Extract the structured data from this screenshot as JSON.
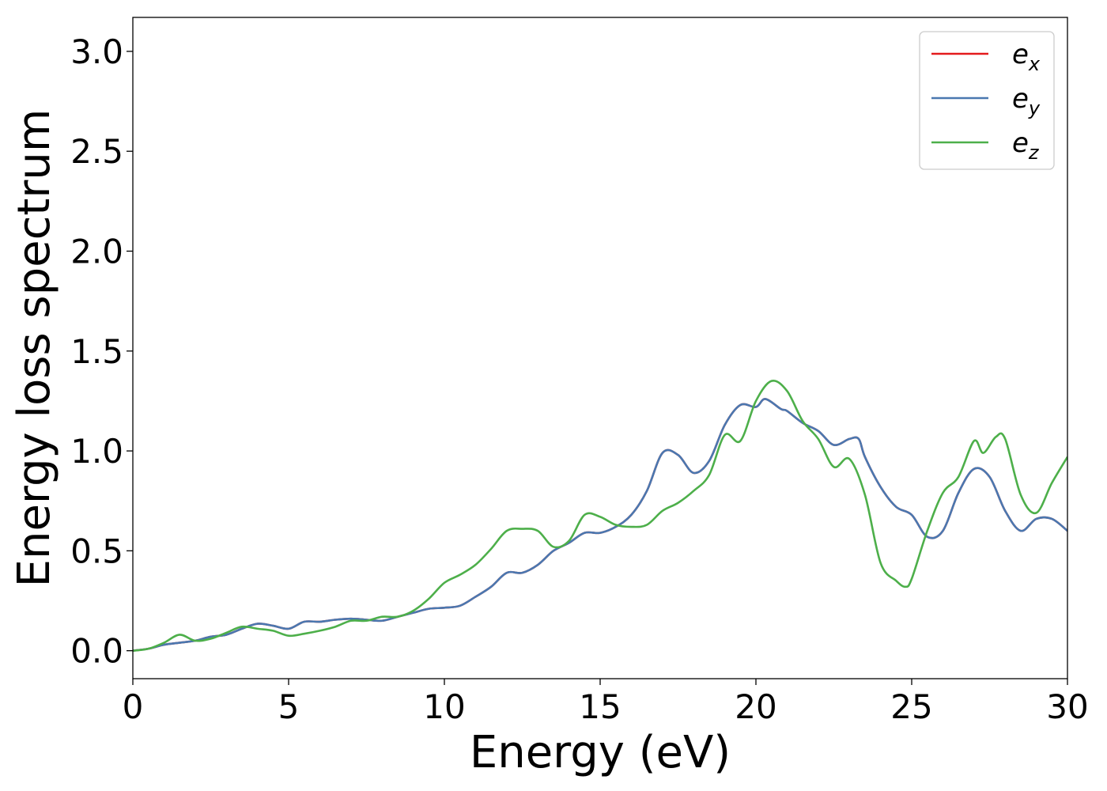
{
  "chart_data": {
    "type": "line",
    "title": "",
    "xlabel": "Energy (eV)",
    "ylabel": "Energy loss spectrum",
    "xlim": [
      0,
      30
    ],
    "ylim": [
      -0.14,
      3.17
    ],
    "xticks": [
      0,
      5,
      10,
      15,
      20,
      25,
      30
    ],
    "xtick_labels": [
      "0",
      "5",
      "10",
      "15",
      "20",
      "25",
      "30"
    ],
    "yticks": [
      0.0,
      0.5,
      1.0,
      1.5,
      2.0,
      2.5,
      3.0
    ],
    "ytick_labels": [
      "0.0",
      "0.5",
      "1.0",
      "1.5",
      "2.0",
      "2.5",
      "3.0"
    ],
    "grid": false,
    "legend_position": "top-right",
    "series": [
      {
        "name": "e_x",
        "legend_base": "e",
        "legend_sub": "x",
        "color": "#e41a1c",
        "points": [
          [
            0,
            0
          ],
          [
            0.5,
            0.01
          ],
          [
            1,
            0.03
          ],
          [
            1.5,
            0.04
          ],
          [
            2,
            0.05
          ],
          [
            2.5,
            0.07
          ],
          [
            3,
            0.08
          ],
          [
            3.5,
            0.11
          ],
          [
            4,
            0.135
          ],
          [
            4.5,
            0.125
          ],
          [
            5,
            0.11
          ],
          [
            5.5,
            0.145
          ],
          [
            6,
            0.145
          ],
          [
            6.5,
            0.155
          ],
          [
            7,
            0.16
          ],
          [
            7.5,
            0.155
          ],
          [
            8,
            0.15
          ],
          [
            8.5,
            0.17
          ],
          [
            9,
            0.19
          ],
          [
            9.5,
            0.21
          ],
          [
            10,
            0.215
          ],
          [
            10.5,
            0.225
          ],
          [
            11,
            0.27
          ],
          [
            11.5,
            0.32
          ],
          [
            12,
            0.39
          ],
          [
            12.5,
            0.39
          ],
          [
            13,
            0.43
          ],
          [
            13.5,
            0.5
          ],
          [
            14,
            0.54
          ],
          [
            14.5,
            0.59
          ],
          [
            15,
            0.59
          ],
          [
            15.5,
            0.62
          ],
          [
            16,
            0.68
          ],
          [
            16.5,
            0.8
          ],
          [
            17,
            0.99
          ],
          [
            17.5,
            0.98
          ],
          [
            18,
            0.89
          ],
          [
            18.5,
            0.95
          ],
          [
            19,
            1.13
          ],
          [
            19.5,
            1.23
          ],
          [
            20,
            1.22
          ],
          [
            20.3,
            1.26
          ],
          [
            20.8,
            1.21
          ],
          [
            21,
            1.2
          ],
          [
            21.5,
            1.14
          ],
          [
            22,
            1.1
          ],
          [
            22.5,
            1.03
          ],
          [
            23,
            1.06
          ],
          [
            23.3,
            1.06
          ],
          [
            23.5,
            0.97
          ],
          [
            24,
            0.82
          ],
          [
            24.5,
            0.72
          ],
          [
            25,
            0.68
          ],
          [
            25.5,
            0.57
          ],
          [
            26,
            0.6
          ],
          [
            26.5,
            0.79
          ],
          [
            27,
            0.91
          ],
          [
            27.5,
            0.87
          ],
          [
            28,
            0.7
          ],
          [
            28.5,
            0.6
          ],
          [
            29,
            0.66
          ],
          [
            29.5,
            0.66
          ],
          [
            30,
            0.6
          ]
        ]
      },
      {
        "name": "e_y",
        "legend_base": "e",
        "legend_sub": "y",
        "color": "#4a78b0",
        "points": [
          [
            0,
            0
          ],
          [
            0.5,
            0.01
          ],
          [
            1,
            0.03
          ],
          [
            1.5,
            0.04
          ],
          [
            2,
            0.05
          ],
          [
            2.5,
            0.07
          ],
          [
            3,
            0.08
          ],
          [
            3.5,
            0.11
          ],
          [
            4,
            0.135
          ],
          [
            4.5,
            0.125
          ],
          [
            5,
            0.11
          ],
          [
            5.5,
            0.145
          ],
          [
            6,
            0.145
          ],
          [
            6.5,
            0.155
          ],
          [
            7,
            0.16
          ],
          [
            7.5,
            0.155
          ],
          [
            8,
            0.15
          ],
          [
            8.5,
            0.17
          ],
          [
            9,
            0.19
          ],
          [
            9.5,
            0.21
          ],
          [
            10,
            0.215
          ],
          [
            10.5,
            0.225
          ],
          [
            11,
            0.27
          ],
          [
            11.5,
            0.32
          ],
          [
            12,
            0.39
          ],
          [
            12.5,
            0.39
          ],
          [
            13,
            0.43
          ],
          [
            13.5,
            0.5
          ],
          [
            14,
            0.54
          ],
          [
            14.5,
            0.59
          ],
          [
            15,
            0.59
          ],
          [
            15.5,
            0.62
          ],
          [
            16,
            0.68
          ],
          [
            16.5,
            0.8
          ],
          [
            17,
            0.99
          ],
          [
            17.5,
            0.98
          ],
          [
            18,
            0.89
          ],
          [
            18.5,
            0.95
          ],
          [
            19,
            1.13
          ],
          [
            19.5,
            1.23
          ],
          [
            20,
            1.22
          ],
          [
            20.3,
            1.26
          ],
          [
            20.8,
            1.21
          ],
          [
            21,
            1.2
          ],
          [
            21.5,
            1.14
          ],
          [
            22,
            1.1
          ],
          [
            22.5,
            1.03
          ],
          [
            23,
            1.06
          ],
          [
            23.3,
            1.06
          ],
          [
            23.5,
            0.97
          ],
          [
            24,
            0.82
          ],
          [
            24.5,
            0.72
          ],
          [
            25,
            0.68
          ],
          [
            25.5,
            0.57
          ],
          [
            26,
            0.6
          ],
          [
            26.5,
            0.79
          ],
          [
            27,
            0.91
          ],
          [
            27.5,
            0.87
          ],
          [
            28,
            0.7
          ],
          [
            28.5,
            0.6
          ],
          [
            29,
            0.66
          ],
          [
            29.5,
            0.66
          ],
          [
            30,
            0.6
          ]
        ]
      },
      {
        "name": "e_z",
        "legend_base": "e",
        "legend_sub": "z",
        "color": "#4daf4a",
        "points": [
          [
            0,
            0
          ],
          [
            0.5,
            0.01
          ],
          [
            1,
            0.04
          ],
          [
            1.5,
            0.08
          ],
          [
            2,
            0.05
          ],
          [
            2.5,
            0.06
          ],
          [
            3,
            0.09
          ],
          [
            3.5,
            0.12
          ],
          [
            4,
            0.11
          ],
          [
            4.5,
            0.1
          ],
          [
            5,
            0.075
          ],
          [
            5.5,
            0.085
          ],
          [
            6,
            0.1
          ],
          [
            6.5,
            0.12
          ],
          [
            7,
            0.15
          ],
          [
            7.5,
            0.15
          ],
          [
            8,
            0.17
          ],
          [
            8.5,
            0.17
          ],
          [
            9,
            0.2
          ],
          [
            9.5,
            0.26
          ],
          [
            10,
            0.34
          ],
          [
            10.5,
            0.38
          ],
          [
            11,
            0.43
          ],
          [
            11.5,
            0.51
          ],
          [
            12,
            0.6
          ],
          [
            12.5,
            0.61
          ],
          [
            13,
            0.6
          ],
          [
            13.5,
            0.52
          ],
          [
            14,
            0.55
          ],
          [
            14.5,
            0.68
          ],
          [
            15,
            0.67
          ],
          [
            15.5,
            0.63
          ],
          [
            16,
            0.62
          ],
          [
            16.5,
            0.63
          ],
          [
            17,
            0.7
          ],
          [
            17.5,
            0.74
          ],
          [
            18,
            0.8
          ],
          [
            18.5,
            0.88
          ],
          [
            19,
            1.08
          ],
          [
            19.5,
            1.05
          ],
          [
            20,
            1.25
          ],
          [
            20.5,
            1.35
          ],
          [
            21,
            1.3
          ],
          [
            21.5,
            1.15
          ],
          [
            22,
            1.06
          ],
          [
            22.5,
            0.92
          ],
          [
            23,
            0.96
          ],
          [
            23.5,
            0.78
          ],
          [
            24,
            0.44
          ],
          [
            24.5,
            0.35
          ],
          [
            24.8,
            0.32
          ],
          [
            25,
            0.36
          ],
          [
            25.5,
            0.6
          ],
          [
            26,
            0.79
          ],
          [
            26.5,
            0.87
          ],
          [
            27,
            1.05
          ],
          [
            27.3,
            0.99
          ],
          [
            27.7,
            1.07
          ],
          [
            28,
            1.06
          ],
          [
            28.5,
            0.78
          ],
          [
            29,
            0.69
          ],
          [
            29.5,
            0.84
          ],
          [
            30,
            0.97
          ]
        ]
      }
    ]
  }
}
